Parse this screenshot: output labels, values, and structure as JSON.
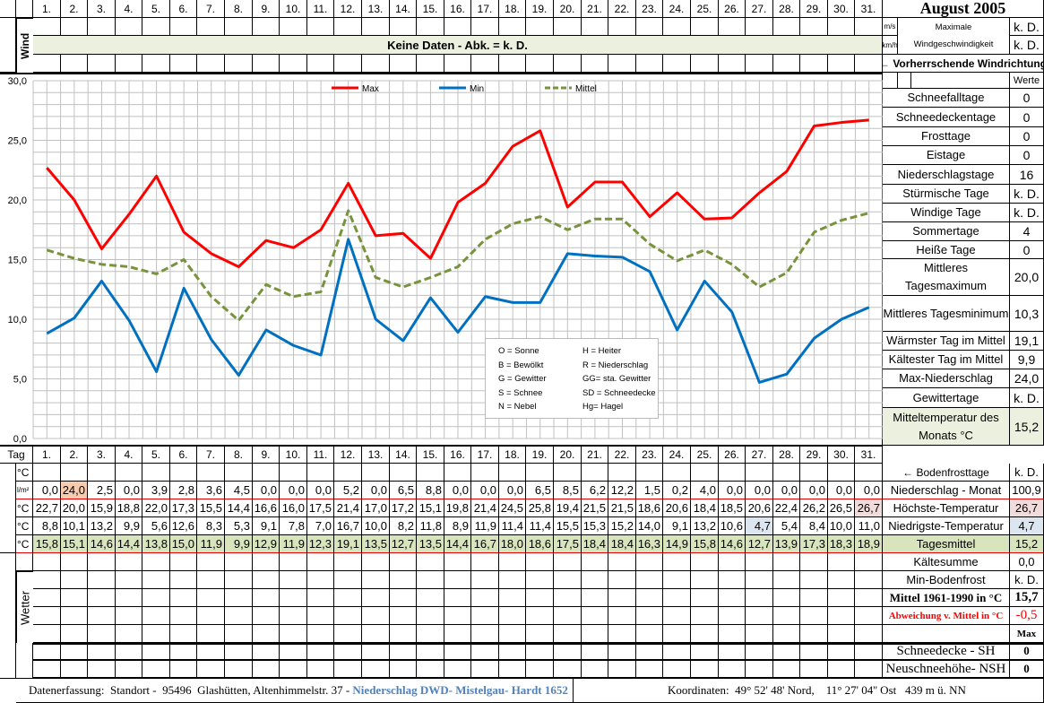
{
  "title": "August 2005",
  "days": [
    "1.",
    "2.",
    "3.",
    "4.",
    "5.",
    "6.",
    "7.",
    "8.",
    "9.",
    "10.",
    "11.",
    "12.",
    "13.",
    "14.",
    "15.",
    "16.",
    "17.",
    "18.",
    "19.",
    "20.",
    "21.",
    "22.",
    "23.",
    "24.",
    "25.",
    "26.",
    "27.",
    "28.",
    "29.",
    "30.",
    "31."
  ],
  "wind": {
    "label": "Wind",
    "no_data": "Keine Daten - Abk. = k. D.",
    "unit_ms": "m/s",
    "unit_kmh": "km/h",
    "max_label_1": "Maximale",
    "max_label_2": "Windgeschwindigkeit",
    "max_ms": "k. D.",
    "max_kmh": "k. D.",
    "direction_label": "← Vorherrschende Windrichtung"
  },
  "stats": {
    "header": "Werte",
    "items": [
      {
        "label": "Schneefalltage",
        "value": "0"
      },
      {
        "label": "Schneedeckentage",
        "value": "0"
      },
      {
        "label": "Frosttage",
        "value": "0"
      },
      {
        "label": "Eistage",
        "value": "0"
      },
      {
        "label": "Niederschlagstage",
        "value": "16"
      },
      {
        "label": "Stürmische Tage",
        "value": "k. D."
      },
      {
        "label": "Windige Tage",
        "value": "k. D."
      },
      {
        "label": "Sommertage",
        "value": "4"
      },
      {
        "label": "Heiße Tage",
        "value": "0"
      },
      {
        "label": "Mittleres Tagesmaximum",
        "value": "20,0"
      },
      {
        "label": "Mittleres Tagesminimum",
        "value": "10,3"
      },
      {
        "label": "Wärmster Tag im Mittel",
        "value": "19,1"
      },
      {
        "label": "Kältester Tag im Mittel",
        "value": "9,9"
      },
      {
        "label": "Max-Niederschlag",
        "value": "24,0"
      },
      {
        "label": "Gewittertage",
        "value": "k. D."
      },
      {
        "label": "Mitteltemperatur des Monats °C",
        "value": "15,2"
      }
    ]
  },
  "table": {
    "tag_label": "Tag",
    "unit_c": "°C",
    "unit_lm2": "l/m²",
    "bodenfrost": {
      "label": "← Bodenfrosttage",
      "value": "k. D."
    },
    "rows": [
      {
        "key": "precip",
        "unit": "l/m²",
        "label": "Niederschlag - Monat",
        "total": "100,9",
        "values": [
          "0,0",
          "24,0",
          "2,5",
          "0,0",
          "3,9",
          "2,8",
          "3,6",
          "4,5",
          "0,0",
          "0,0",
          "0,0",
          "5,2",
          "0,0",
          "6,5",
          "8,8",
          "0,0",
          "0,0",
          "0,0",
          "6,5",
          "8,5",
          "6,2",
          "12,2",
          "1,5",
          "0,2",
          "4,0",
          "0,0",
          "0,0",
          "0,0",
          "0,0",
          "0,0",
          "0,0"
        ]
      },
      {
        "key": "max",
        "unit": "°C",
        "label": "Höchste-Temperatur",
        "total": "26,7",
        "values": [
          "22,7",
          "20,0",
          "15,9",
          "18,8",
          "22,0",
          "17,3",
          "15,5",
          "14,4",
          "16,6",
          "16,0",
          "17,5",
          "21,4",
          "17,0",
          "17,2",
          "15,1",
          "19,8",
          "21,4",
          "24,5",
          "25,8",
          "19,4",
          "21,5",
          "21,5",
          "18,6",
          "20,6",
          "18,4",
          "18,5",
          "20,6",
          "22,4",
          "26,2",
          "26,5",
          "26,7"
        ]
      },
      {
        "key": "min",
        "unit": "°C",
        "label": "Niedrigste-Temperatur",
        "total": "4,7",
        "values": [
          "8,8",
          "10,1",
          "13,2",
          "9,9",
          "5,6",
          "12,6",
          "8,3",
          "5,3",
          "9,1",
          "7,8",
          "7,0",
          "16,7",
          "10,0",
          "8,2",
          "11,8",
          "8,9",
          "11,9",
          "11,4",
          "11,4",
          "15,5",
          "15,3",
          "15,2",
          "14,0",
          "9,1",
          "13,2",
          "10,6",
          "4,7",
          "5,4",
          "8,4",
          "10,0",
          "11,0"
        ]
      },
      {
        "key": "mean",
        "unit": "°C",
        "label": "Tagesmittel",
        "total": "15,2",
        "values": [
          "15,8",
          "15,1",
          "14,6",
          "14,4",
          "13,8",
          "15,0",
          "11,9",
          "9,9",
          "12,9",
          "11,9",
          "12,3",
          "19,1",
          "13,5",
          "12,7",
          "13,5",
          "14,4",
          "16,7",
          "18,0",
          "18,6",
          "17,5",
          "18,4",
          "18,4",
          "16,3",
          "14,9",
          "15,8",
          "14,6",
          "12,7",
          "13,9",
          "17,3",
          "18,3",
          "18,9"
        ]
      }
    ],
    "highlight_colors": {
      "precip_max": "#f8cbad",
      "temp_max": "#f2dcdb",
      "temp_min": "#dce6f1",
      "mean": "#d8e4bc"
    }
  },
  "extra": [
    {
      "label": "Kältesumme",
      "value": "0,0"
    },
    {
      "label": "Min-Bodenfrost",
      "value": "k. D."
    },
    {
      "label": "Mittel 1961-1990 in °C",
      "value": "15,7"
    },
    {
      "label": "Abweichung v. Mittel in °C",
      "value": "-0,5"
    },
    {
      "label": "",
      "value": "Max"
    },
    {
      "label": "Schneedecke -   SH",
      "value": "0"
    },
    {
      "label": "Neuschneehöhe- NSH",
      "value": "0"
    }
  ],
  "wetter_label": "Wetter",
  "footer": {
    "left": "Datenerfassung:  Standort -  95496  Glashütten, Altenhimmelstr. 37 - ",
    "left_link": "Niederschlag DWD- Mistelgau- Hardt 1652",
    "right": "Koordinaten:  49° 52' 48' Nord,    11° 27' 04'' Ost   439 m ü. NN"
  },
  "chart_data": {
    "type": "line",
    "x": [
      1,
      2,
      3,
      4,
      5,
      6,
      7,
      8,
      9,
      10,
      11,
      12,
      13,
      14,
      15,
      16,
      17,
      18,
      19,
      20,
      21,
      22,
      23,
      24,
      25,
      26,
      27,
      28,
      29,
      30,
      31
    ],
    "ylim": [
      0,
      30
    ],
    "yticks": [
      "0,0",
      "5,0",
      "10,0",
      "15,0",
      "20,0",
      "25,0",
      "30,0"
    ],
    "grid": true,
    "legend_placement": "top",
    "series": [
      {
        "name": "Max",
        "color": "#ff0000",
        "style": "solid",
        "values": [
          22.7,
          20.0,
          15.9,
          18.8,
          22.0,
          17.3,
          15.5,
          14.4,
          16.6,
          16.0,
          17.5,
          21.4,
          17.0,
          17.2,
          15.1,
          19.8,
          21.4,
          24.5,
          25.8,
          19.4,
          21.5,
          21.5,
          18.6,
          20.6,
          18.4,
          18.5,
          20.6,
          22.4,
          26.2,
          26.5,
          26.7
        ]
      },
      {
        "name": "Min",
        "color": "#0070c0",
        "style": "solid",
        "values": [
          8.8,
          10.1,
          13.2,
          9.9,
          5.6,
          12.6,
          8.3,
          5.3,
          9.1,
          7.8,
          7.0,
          16.7,
          10.0,
          8.2,
          11.8,
          8.9,
          11.9,
          11.4,
          11.4,
          15.5,
          15.3,
          15.2,
          14.0,
          9.1,
          13.2,
          10.6,
          4.7,
          5.4,
          8.4,
          10.0,
          11.0
        ]
      },
      {
        "name": "Mittel",
        "color": "#77933c",
        "style": "dashed",
        "values": [
          15.8,
          15.1,
          14.6,
          14.4,
          13.8,
          15.0,
          11.9,
          9.9,
          12.9,
          11.9,
          12.3,
          19.1,
          13.5,
          12.7,
          13.5,
          14.4,
          16.7,
          18.0,
          18.6,
          17.5,
          18.4,
          18.4,
          16.3,
          14.9,
          15.8,
          14.6,
          12.7,
          13.9,
          17.3,
          18.3,
          18.9
        ]
      }
    ],
    "weather_codes": [
      [
        "O = Sonne",
        "H = Heiter"
      ],
      [
        "B = Bewölkt",
        "R = Niederschlag"
      ],
      [
        "G = Gewitter",
        "GG= sta. Gewitter"
      ],
      [
        "S = Schnee",
        "SD = Schneedecke"
      ],
      [
        "N = Nebel",
        "Hg= Hagel"
      ]
    ]
  }
}
